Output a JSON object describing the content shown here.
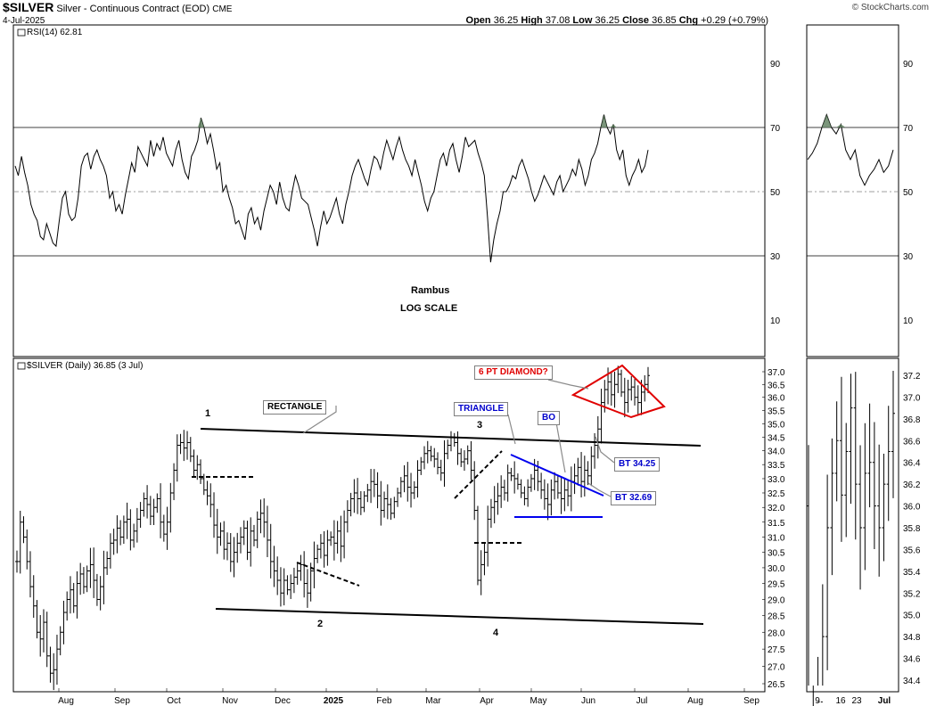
{
  "header": {
    "symbol": "$SILVER",
    "name": "Silver - Continuous Contract (EOD)",
    "exchange": "CME",
    "date": "4-Jul-2025",
    "open_label": "Open",
    "open": "36.25",
    "high_label": "High",
    "high": "37.08",
    "low_label": "Low",
    "low": "36.25",
    "close_label": "Close",
    "close": "36.85",
    "chg_label": "Chg",
    "chg": "+0.29 (+0.79%)",
    "watermark": "© StockCharts.com"
  },
  "rsi_panel": {
    "legend": "RSI(14) 62.81",
    "ticks": [
      "90",
      "70",
      "50",
      "30",
      "10"
    ],
    "note1": "Rambus",
    "note2": "LOG SCALE"
  },
  "price_panel": {
    "legend": "$SILVER (Daily) 36.85 (3 Jul)",
    "ticks": [
      "37.0",
      "36.5",
      "36.0",
      "35.5",
      "35.0",
      "34.5",
      "34.0",
      "33.5",
      "33.0",
      "32.5",
      "32.0",
      "31.5",
      "31.0",
      "30.5",
      "30.0",
      "29.5",
      "29.0",
      "28.5",
      "28.0",
      "27.5",
      "27.0",
      "26.5"
    ],
    "zoom_ticks": [
      "37.2",
      "37.0",
      "36.8",
      "36.6",
      "36.4",
      "36.2",
      "36.0",
      "35.8",
      "35.6",
      "35.4",
      "35.2",
      "35.0",
      "34.8",
      "34.6",
      "34.4"
    ],
    "x_labels": [
      "Aug",
      "Sep",
      "Oct",
      "Nov",
      "Dec",
      "2025",
      "Feb",
      "Mar",
      "Apr",
      "May",
      "Jun",
      "Jul",
      "Aug",
      "Sep"
    ],
    "zoom_x_labels": [
      "9",
      "16",
      "23",
      "Jul"
    ]
  },
  "annotations": {
    "rectangle": "RECTANGLE",
    "triangle": "TRIANGLE",
    "diamond": "6 PT DIAMOND?",
    "bo": "BO",
    "bt1": "BT 34.25",
    "bt2": "BT 32.69",
    "p1": "1",
    "p2": "2",
    "p3": "3",
    "p4": "4"
  },
  "colors": {
    "grid": "#000000",
    "midline": "#808080",
    "rsi_fill": "#5a7a5a",
    "pattern_black": "#000000",
    "pattern_blue": "#0000ee",
    "pattern_red": "#e00000"
  },
  "chart_data": [
    {
      "type": "line",
      "indicator": "RSI(14)",
      "ylim": [
        0,
        100
      ],
      "reference_lines": [
        30,
        50,
        70
      ],
      "x_range": [
        "2024-07-22",
        "2025-07-03"
      ],
      "values": [
        58,
        55,
        61,
        56,
        52,
        46,
        43,
        41,
        36,
        35,
        40,
        37,
        34,
        33,
        41,
        48,
        50,
        43,
        41,
        42,
        48,
        58,
        61,
        62,
        57,
        61,
        63,
        60,
        58,
        55,
        48,
        50,
        44,
        46,
        43,
        49,
        54,
        59,
        56,
        64,
        62,
        60,
        58,
        66,
        61,
        65,
        63,
        67,
        62,
        60,
        58,
        63,
        66,
        60,
        56,
        54,
        61,
        63,
        66,
        73,
        70,
        65,
        68,
        63,
        57,
        59,
        50,
        52,
        48,
        45,
        40,
        41,
        38,
        35,
        43,
        45,
        40,
        42,
        38,
        44,
        48,
        52,
        50,
        46,
        53,
        48,
        45,
        44,
        50,
        55,
        52,
        48,
        47,
        46,
        42,
        38,
        33,
        39,
        44,
        40,
        42,
        45,
        48,
        43,
        40,
        46,
        50,
        55,
        58,
        60,
        57,
        54,
        52,
        57,
        61,
        60,
        57,
        62,
        66,
        63,
        60,
        64,
        67,
        63,
        60,
        58,
        55,
        60,
        56,
        52,
        47,
        44,
        48,
        50,
        55,
        60,
        62,
        58,
        63,
        65,
        60,
        56,
        61,
        67,
        64,
        65,
        66,
        62,
        59,
        55,
        42,
        28,
        35,
        40,
        44,
        50,
        50,
        52,
        55,
        54,
        58,
        60,
        57,
        54,
        50,
        47,
        49,
        52,
        55,
        53,
        51,
        49,
        53,
        55,
        50,
        52,
        54,
        57,
        55,
        60,
        57,
        52,
        55,
        60,
        62,
        65,
        70,
        74,
        70,
        68,
        71,
        63,
        60,
        63,
        55,
        52,
        55,
        57,
        60,
        56,
        58,
        63
      ]
    },
    {
      "type": "ohlc",
      "series": "$SILVER (Daily)",
      "scale": "log",
      "ylim": [
        26.3,
        37.4
      ],
      "x_range": [
        "2024-07-22",
        "2025-07-03"
      ],
      "last_close": 36.85,
      "closes": [
        30.2,
        31.5,
        31.0,
        30.2,
        29.4,
        28.8,
        28.0,
        27.8,
        28.3,
        27.3,
        26.8,
        26.9,
        27.5,
        28.0,
        28.6,
        29.0,
        29.3,
        28.8,
        29.5,
        29.8,
        29.4,
        29.9,
        30.1,
        29.6,
        29.0,
        29.4,
        30.0,
        30.3,
        30.8,
        30.9,
        31.3,
        31.0,
        31.5,
        31.6,
        30.9,
        31.2,
        31.6,
        31.9,
        32.3,
        32.1,
        31.7,
        32.0,
        32.3,
        31.5,
        31.1,
        31.5,
        32.5,
        33.3,
        34.2,
        34.3,
        34.1,
        34.3,
        33.8,
        33.3,
        33.5,
        33.0,
        32.6,
        32.4,
        32.1,
        31.4,
        31.0,
        31.2,
        30.6,
        30.8,
        30.2,
        30.5,
        30.8,
        31.0,
        31.3,
        30.5,
        31.2,
        30.9,
        31.6,
        31.8,
        31.5,
        30.9,
        30.2,
        29.9,
        29.6,
        29.2,
        29.6,
        29.3,
        29.5,
        29.7,
        29.9,
        30.1,
        29.5,
        29.2,
        29.9,
        30.3,
        30.6,
        30.8,
        30.4,
        30.9,
        31.0,
        30.8,
        31.2,
        30.7,
        31.5,
        31.9,
        32.3,
        32.5,
        32.3,
        32.0,
        32.4,
        32.6,
        32.9,
        32.8,
        32.4,
        31.9,
        32.3,
        32.1,
        31.8,
        32.2,
        32.5,
        32.9,
        33.1,
        32.7,
        32.5,
        32.7,
        33.3,
        33.6,
        33.9,
        34.0,
        33.8,
        33.7,
        33.4,
        33.2,
        33.9,
        34.2,
        34.5,
        34.3,
        33.9,
        33.6,
        33.7,
        34.0,
        33.3,
        31.9,
        29.6,
        30.1,
        30.5,
        31.6,
        32.0,
        32.2,
        32.4,
        32.7,
        32.5,
        33.2,
        33.1,
        33.0,
        32.8,
        32.5,
        32.3,
        32.7,
        33.0,
        33.3,
        32.9,
        32.6,
        32.3,
        32.1,
        32.6,
        32.9,
        32.5,
        32.3,
        32.6,
        32.4,
        32.9,
        33.1,
        33.4,
        32.9,
        33.3,
        33.1,
        33.8,
        34.2,
        34.8,
        35.8,
        36.3,
        36.6,
        36.1,
        36.5,
        36.9,
        36.2,
        35.8,
        36.3,
        36.4,
        36.0,
        35.8,
        36.2,
        36.5,
        36.85
      ]
    }
  ]
}
